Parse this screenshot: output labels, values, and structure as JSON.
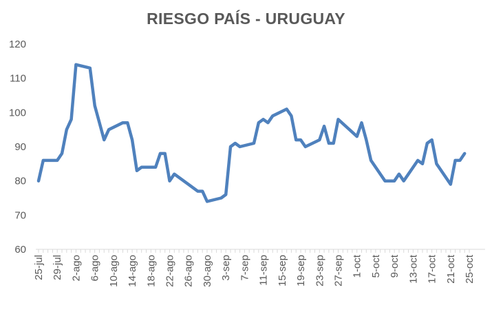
{
  "chart_data": {
    "type": "line",
    "title": "RIESGO PAÍS - URUGUAY",
    "xlabel": "",
    "ylabel": "",
    "ylim": [
      60,
      120
    ],
    "yticks": [
      60,
      70,
      80,
      90,
      100,
      110,
      120
    ],
    "grid": false,
    "legend": "none",
    "line_color": "#4f81bd",
    "x_tick_labels": [
      "25-jul",
      "29-jul",
      "2-ago",
      "6-ago",
      "10-ago",
      "14-ago",
      "18-ago",
      "22-ago",
      "26-ago",
      "30-ago",
      "3-sep",
      "7-sep",
      "11-sep",
      "15-sep",
      "19-sep",
      "23-sep",
      "27-sep",
      "1-oct",
      "5-oct",
      "9-oct",
      "13-oct",
      "17-oct",
      "21-oct",
      "25-oct"
    ],
    "x_start": "2019-07-25",
    "x_end": "2019-10-25",
    "series": [
      {
        "points": [
          [
            "2019-07-25",
            80
          ],
          [
            "2019-07-26",
            86
          ],
          [
            "2019-07-29",
            86
          ],
          [
            "2019-07-30",
            88
          ],
          [
            "2019-07-31",
            95
          ],
          [
            "2019-08-01",
            98
          ],
          [
            "2019-08-02",
            114
          ],
          [
            "2019-08-05",
            113
          ],
          [
            "2019-08-06",
            102
          ],
          [
            "2019-08-07",
            97
          ],
          [
            "2019-08-08",
            92
          ],
          [
            "2019-08-09",
            95
          ],
          [
            "2019-08-12",
            97
          ],
          [
            "2019-08-13",
            97
          ],
          [
            "2019-08-14",
            92
          ],
          [
            "2019-08-15",
            83
          ],
          [
            "2019-08-16",
            84
          ],
          [
            "2019-08-19",
            84
          ],
          [
            "2019-08-20",
            88
          ],
          [
            "2019-08-21",
            88
          ],
          [
            "2019-08-22",
            80
          ],
          [
            "2019-08-23",
            82
          ],
          [
            "2019-08-26",
            79
          ],
          [
            "2019-08-28",
            77
          ],
          [
            "2019-08-29",
            77
          ],
          [
            "2019-08-30",
            74
          ],
          [
            "2019-09-02",
            75
          ],
          [
            "2019-09-03",
            76
          ],
          [
            "2019-09-04",
            90
          ],
          [
            "2019-09-05",
            91
          ],
          [
            "2019-09-06",
            90
          ],
          [
            "2019-09-09",
            91
          ],
          [
            "2019-09-10",
            97
          ],
          [
            "2019-09-11",
            98
          ],
          [
            "2019-09-12",
            97
          ],
          [
            "2019-09-13",
            99
          ],
          [
            "2019-09-16",
            101
          ],
          [
            "2019-09-17",
            99
          ],
          [
            "2019-09-18",
            92
          ],
          [
            "2019-09-19",
            92
          ],
          [
            "2019-09-20",
            90
          ],
          [
            "2019-09-23",
            92
          ],
          [
            "2019-09-24",
            96
          ],
          [
            "2019-09-25",
            91
          ],
          [
            "2019-09-26",
            91
          ],
          [
            "2019-09-27",
            98
          ],
          [
            "2019-10-01",
            93
          ],
          [
            "2019-10-02",
            97
          ],
          [
            "2019-10-03",
            92
          ],
          [
            "2019-10-04",
            86
          ],
          [
            "2019-10-07",
            80
          ],
          [
            "2019-10-08",
            80
          ],
          [
            "2019-10-09",
            80
          ],
          [
            "2019-10-10",
            82
          ],
          [
            "2019-10-11",
            80
          ],
          [
            "2019-10-14",
            86
          ],
          [
            "2019-10-15",
            85
          ],
          [
            "2019-10-16",
            91
          ],
          [
            "2019-10-17",
            92
          ],
          [
            "2019-10-18",
            85
          ],
          [
            "2019-10-21",
            79
          ],
          [
            "2019-10-22",
            86
          ],
          [
            "2019-10-23",
            86
          ],
          [
            "2019-10-24",
            88
          ]
        ]
      }
    ]
  }
}
